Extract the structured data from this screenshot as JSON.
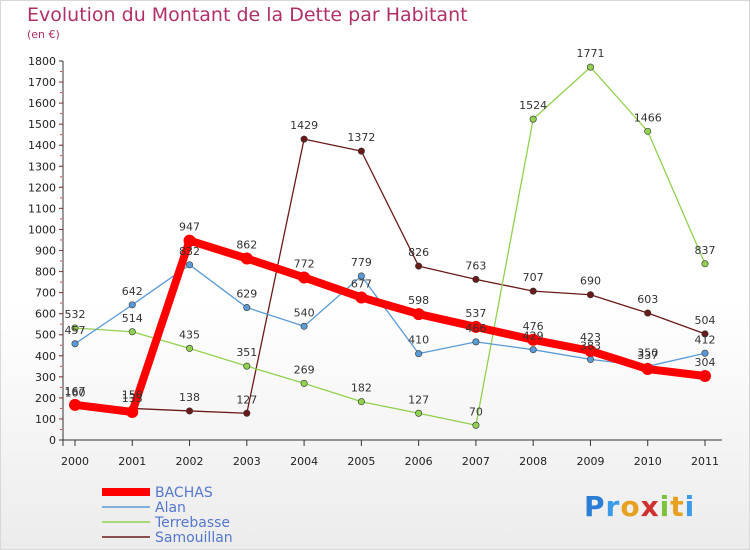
{
  "title": "Evolution du Montant de la Dette par Habitant",
  "unit_label": "(en €)",
  "brand": {
    "letters": [
      "P",
      "r",
      "o",
      "x",
      "i",
      "t",
      "i"
    ],
    "colors": [
      "#2a7fd4",
      "#3b9be8",
      "#e8a020",
      "#d03030",
      "#7cc23a",
      "#e8a020",
      "#3b9be8"
    ]
  },
  "chart_data": {
    "type": "line",
    "x": [
      "2000",
      "2001",
      "2002",
      "2003",
      "2004",
      "2005",
      "2006",
      "2007",
      "2008",
      "2009",
      "2010",
      "2011"
    ],
    "ylim": [
      0,
      1800
    ],
    "yticks": [
      0,
      100,
      200,
      300,
      400,
      500,
      600,
      700,
      800,
      900,
      1000,
      1100,
      1200,
      1300,
      1400,
      1500,
      1600,
      1700,
      1800
    ],
    "grid": false,
    "legend_position": "bottom-left",
    "series": [
      {
        "name": "BACHAS",
        "color": "#ff0000",
        "values": [
          167,
          133,
          947,
          862,
          772,
          677,
          598,
          537,
          476,
          423,
          337,
          304
        ]
      },
      {
        "name": "Alan",
        "color": "#5b9bd5",
        "values": [
          457,
          642,
          832,
          629,
          540,
          779,
          410,
          466,
          429,
          383,
          350,
          412
        ]
      },
      {
        "name": "Terrebasse",
        "color": "#92d050",
        "values": [
          532,
          514,
          435,
          351,
          269,
          182,
          127,
          70,
          1524,
          1771,
          1466,
          837
        ]
      },
      {
        "name": "Samouillan",
        "color": "#6b1a1a",
        "values": [
          160,
          150,
          138,
          127,
          1429,
          1372,
          826,
          763,
          707,
          690,
          603,
          504
        ]
      }
    ]
  }
}
